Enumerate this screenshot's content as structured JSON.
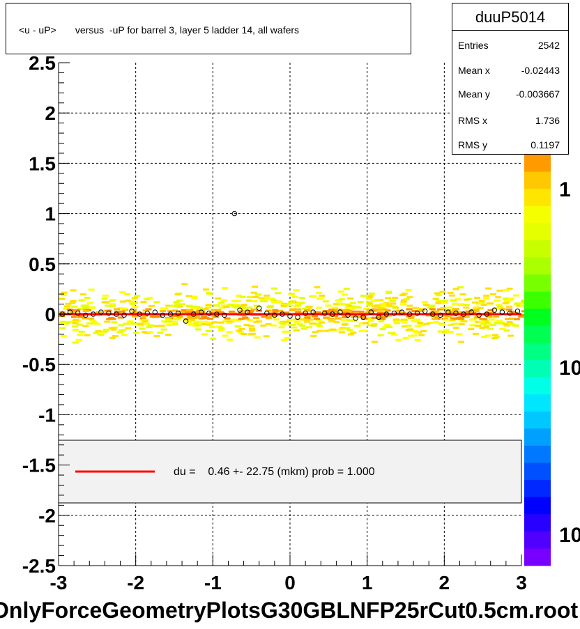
{
  "title": "<u - uP>       versus  -uP for barrel 3, layer 5 ladder 14, all wafers",
  "stats": {
    "name": "duuP5014",
    "rows": [
      {
        "label": "Entries",
        "value": "2542"
      },
      {
        "label": "Mean x",
        "value": "-0.02443"
      },
      {
        "label": "Mean y",
        "value": "-0.003667"
      },
      {
        "label": "RMS x",
        "value": "1.736"
      },
      {
        "label": "RMS y",
        "value": "0.1197"
      }
    ]
  },
  "legend": {
    "text": "du =    0.46 +- 22.75 (mkm) prob = 1.000",
    "line_color": "#ff0000"
  },
  "bottom_label": "OnlyForceGeometryPlotsG30GBLNFP25rCut0.5cm.root",
  "chart_data": {
    "type": "scatter",
    "title": "<u - uP>       versus  -uP for barrel 3, layer 5 ladder 14, all wafers",
    "xlim": [
      -3,
      3
    ],
    "ylim": [
      -2.5,
      2.5
    ],
    "x_ticks": [
      "-3",
      "-2",
      "-1",
      "0",
      "1",
      "2",
      "3"
    ],
    "y_ticks": [
      "-2.5",
      "-2",
      "-1.5",
      "-1",
      "-0.5",
      "0",
      "0.5",
      "1",
      "1.5",
      "2",
      "2.5"
    ],
    "grid": true,
    "z_scale_labels": [
      "1",
      "10",
      "10"
    ],
    "fit_line": {
      "slope": 0.0,
      "intercept": 0.0,
      "color": "#ff0000"
    },
    "profile_points": [
      {
        "x": -2.95,
        "y": 0.0
      },
      {
        "x": -2.85,
        "y": 0.02
      },
      {
        "x": -2.75,
        "y": 0.01
      },
      {
        "x": -2.65,
        "y": -0.01
      },
      {
        "x": -2.55,
        "y": 0.0
      },
      {
        "x": -2.45,
        "y": 0.02
      },
      {
        "x": -2.35,
        "y": 0.01
      },
      {
        "x": -2.25,
        "y": 0.0
      },
      {
        "x": -2.15,
        "y": -0.01
      },
      {
        "x": -2.05,
        "y": 0.03
      },
      {
        "x": -1.95,
        "y": 0.0
      },
      {
        "x": -1.85,
        "y": 0.01
      },
      {
        "x": -1.75,
        "y": 0.02
      },
      {
        "x": -1.65,
        "y": -0.01
      },
      {
        "x": -1.55,
        "y": 0.0
      },
      {
        "x": -1.45,
        "y": 0.01
      },
      {
        "x": -1.35,
        "y": -0.07
      },
      {
        "x": -1.25,
        "y": 0.0
      },
      {
        "x": -1.15,
        "y": 0.02
      },
      {
        "x": -1.05,
        "y": 0.01
      },
      {
        "x": -0.95,
        "y": 0.0
      },
      {
        "x": -0.85,
        "y": -0.01
      },
      {
        "x": -0.72,
        "y": 1.0
      },
      {
        "x": -0.65,
        "y": 0.04
      },
      {
        "x": -0.55,
        "y": 0.02
      },
      {
        "x": -0.4,
        "y": 0.06
      },
      {
        "x": -0.3,
        "y": 0.01
      },
      {
        "x": -0.2,
        "y": -0.01
      },
      {
        "x": -0.1,
        "y": 0.0
      },
      {
        "x": 0.0,
        "y": -0.02
      },
      {
        "x": 0.1,
        "y": -0.03
      },
      {
        "x": 0.2,
        "y": 0.01
      },
      {
        "x": 0.3,
        "y": 0.02
      },
      {
        "x": 0.45,
        "y": 0.01
      },
      {
        "x": 0.55,
        "y": 0.0
      },
      {
        "x": 0.65,
        "y": 0.02
      },
      {
        "x": 0.75,
        "y": -0.01
      },
      {
        "x": 0.85,
        "y": -0.04
      },
      {
        "x": 0.95,
        "y": -0.03
      },
      {
        "x": 1.05,
        "y": 0.02
      },
      {
        "x": 1.15,
        "y": -0.03
      },
      {
        "x": 1.25,
        "y": 0.0
      },
      {
        "x": 1.35,
        "y": 0.01
      },
      {
        "x": 1.45,
        "y": 0.02
      },
      {
        "x": 1.55,
        "y": 0.0
      },
      {
        "x": 1.65,
        "y": 0.01
      },
      {
        "x": 1.75,
        "y": 0.03
      },
      {
        "x": 1.85,
        "y": 0.0
      },
      {
        "x": 1.95,
        "y": -0.01
      },
      {
        "x": 2.05,
        "y": 0.02
      },
      {
        "x": 2.15,
        "y": 0.01
      },
      {
        "x": 2.25,
        "y": 0.0
      },
      {
        "x": 2.35,
        "y": 0.02
      },
      {
        "x": 2.45,
        "y": -0.01
      },
      {
        "x": 2.55,
        "y": 0.0
      },
      {
        "x": 2.65,
        "y": 0.04
      },
      {
        "x": 2.75,
        "y": 0.02
      },
      {
        "x": 2.85,
        "y": 0.01
      },
      {
        "x": 2.95,
        "y": 0.03
      }
    ],
    "colors": {
      "fit": "#ff0000",
      "grid": "#000000",
      "legend_bg": "#f2f2f2"
    }
  }
}
